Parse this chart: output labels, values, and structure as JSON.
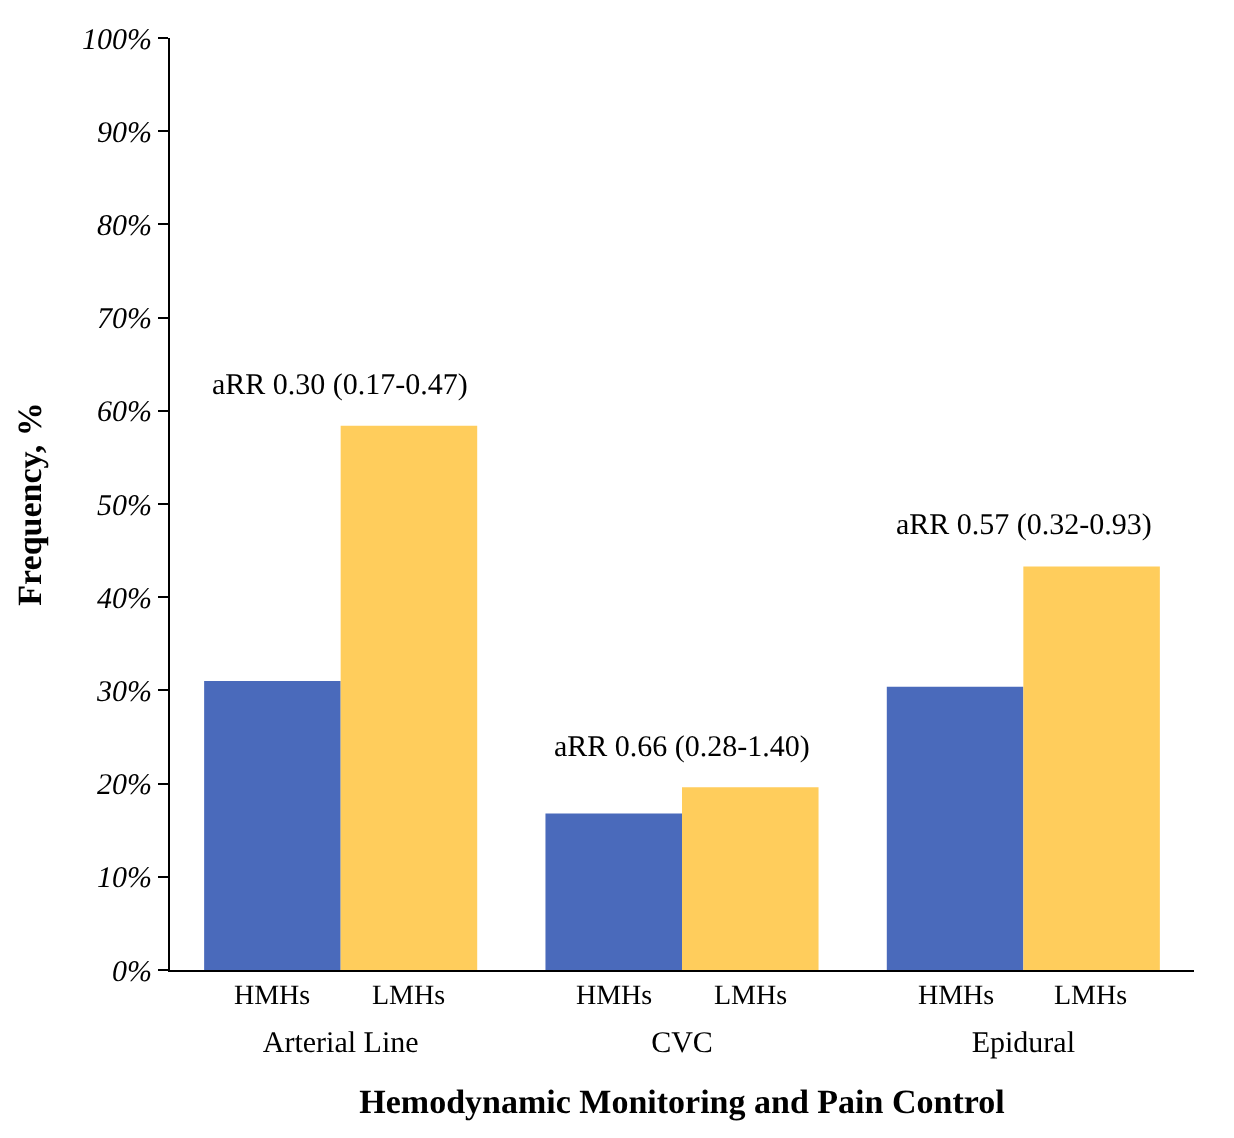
{
  "chart_data": {
    "type": "bar",
    "xlabel": "Hemodynamic Monitoring and Pain Control",
    "ylabel": "Frequency, %",
    "categories": [
      "Arterial Line",
      "CVC",
      "Epidural"
    ],
    "series": [
      {
        "name": "HMHs",
        "color": "#4a6abb",
        "values": [
          31.0,
          16.8,
          30.4
        ]
      },
      {
        "name": "LMHs",
        "color": "#ffcd5c",
        "values": [
          58.4,
          19.6,
          43.3
        ]
      }
    ],
    "ylim": [
      0,
      100
    ],
    "yticks": [
      {
        "value": 0,
        "label": "0%"
      },
      {
        "value": 10,
        "label": "10%"
      },
      {
        "value": 20,
        "label": "20%"
      },
      {
        "value": 30,
        "label": "30%"
      },
      {
        "value": 40,
        "label": "40%"
      },
      {
        "value": 50,
        "label": "50%"
      },
      {
        "value": 60,
        "label": "60%"
      },
      {
        "value": 70,
        "label": "70%"
      },
      {
        "value": 80,
        "label": "80%"
      },
      {
        "value": 90,
        "label": "90%"
      },
      {
        "value": 100,
        "label": "100%"
      }
    ],
    "annotations": [
      "aRR 0.30 (0.17-0.47)",
      "aRR 0.66 (0.28-1.40)",
      "aRR 0.57 (0.32-0.93)"
    ],
    "grid": false,
    "legend": false
  }
}
